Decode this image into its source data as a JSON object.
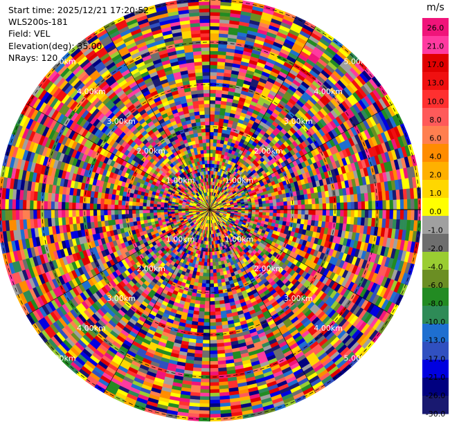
{
  "info": {
    "start_time": "Start time: 2025/12/21 17:20:52",
    "station": "WLS200s-181",
    "field": "Field: VEL",
    "elevation": "Elevation(deg): 35.00",
    "nrays": "NRays: 120"
  },
  "colorbar": {
    "unit": "m/s",
    "ticks": [
      "26.0",
      "21.0",
      "17.0",
      "13.0",
      "10.0",
      "8.0",
      "6.0",
      "4.0",
      "2.0",
      "1.0",
      "0.0",
      "-1.0",
      "-2.0",
      "-4.0",
      "-6.0",
      "-8.0",
      "-10.0",
      "-13.0",
      "-17.0",
      "-21.0",
      "-26.0",
      "-30.0"
    ],
    "colors": [
      "#f0147a",
      "#ff3aa0",
      "#e00000",
      "#f01010",
      "#ff3030",
      "#ff5a5a",
      "#ff7f50",
      "#ff8c00",
      "#ffb000",
      "#ffd700",
      "#ffff00",
      "#a0a0a0",
      "#6e6e6e",
      "#9acd32",
      "#6b8e23",
      "#228b22",
      "#2e8b57",
      "#1e6fd0",
      "#3050c0",
      "#0000e0",
      "#000080",
      "#191970"
    ]
  },
  "chart_data": {
    "type": "ppi",
    "field": "VEL",
    "nrays": 120,
    "elevation_deg": 35.0,
    "range_rings_km": [
      "1.00km",
      "2.00km",
      "3.00km",
      "4.00km",
      "5.00km"
    ],
    "value_range": [
      -30.0,
      26.0
    ]
  }
}
